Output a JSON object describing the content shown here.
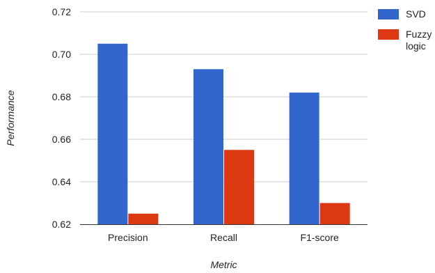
{
  "chart_data": {
    "type": "bar",
    "title": "",
    "xlabel": "Metric",
    "ylabel": "Performance",
    "categories": [
      "Precision",
      "Recall",
      "F1-score"
    ],
    "series": [
      {
        "name": "SVD",
        "color": "#3366cc",
        "values": [
          0.705,
          0.693,
          0.682
        ]
      },
      {
        "name": "Fuzzy logic",
        "legend_lines": [
          "Fuzzy",
          "logic"
        ],
        "color": "#dc3912",
        "values": [
          0.625,
          0.655,
          0.63
        ]
      }
    ],
    "ylim": [
      0.62,
      0.72
    ],
    "yticks": [
      0.62,
      0.64,
      0.66,
      0.68,
      0.7,
      0.72
    ],
    "ytick_labels": [
      "0.62",
      "0.64",
      "0.66",
      "0.68",
      "0.70",
      "0.72"
    ],
    "grid": true,
    "legend_position": "right"
  }
}
